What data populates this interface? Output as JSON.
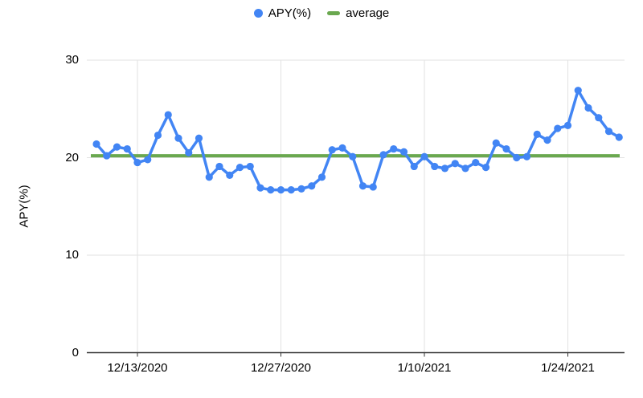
{
  "legend": {
    "apy_label": "APY(%)",
    "average_label": "average"
  },
  "y_axis_label": "APY(%)",
  "chart_data": {
    "type": "line",
    "title": "",
    "xlabel": "",
    "ylabel": "APY(%)",
    "ylim": [
      0,
      30
    ],
    "grid": true,
    "legend_position": "top-center",
    "colors": {
      "apy_series": "#4285f4",
      "average_line": "#6aa84f",
      "gridline": "#e2e2e2",
      "axis": "#333333",
      "background": "#ffffff"
    },
    "yticks": [
      "0",
      "10",
      "20",
      "30"
    ],
    "xticks": [
      "12/13/2020",
      "12/27/2020",
      "1/10/2021",
      "1/24/2021"
    ],
    "x": [
      "12/9/2020",
      "12/10/2020",
      "12/11/2020",
      "12/12/2020",
      "12/13/2020",
      "12/14/2020",
      "12/15/2020",
      "12/16/2020",
      "12/17/2020",
      "12/18/2020",
      "12/19/2020",
      "12/20/2020",
      "12/21/2020",
      "12/22/2020",
      "12/23/2020",
      "12/24/2020",
      "12/25/2020",
      "12/26/2020",
      "12/27/2020",
      "12/28/2020",
      "12/29/2020",
      "12/30/2020",
      "12/31/2020",
      "1/1/2021",
      "1/2/2021",
      "1/3/2021",
      "1/4/2021",
      "1/5/2021",
      "1/6/2021",
      "1/7/2021",
      "1/8/2021",
      "1/9/2021",
      "1/10/2021",
      "1/11/2021",
      "1/12/2021",
      "1/13/2021",
      "1/14/2021",
      "1/15/2021",
      "1/16/2021",
      "1/17/2021",
      "1/18/2021",
      "1/19/2021",
      "1/20/2021",
      "1/21/2021",
      "1/22/2021",
      "1/23/2021",
      "1/24/2021",
      "1/25/2021",
      "1/26/2021",
      "1/27/2021",
      "1/28/2021",
      "1/29/2021"
    ],
    "series": [
      {
        "name": "APY(%)",
        "type": "line-with-markers",
        "values": [
          21.4,
          20.2,
          21.1,
          20.9,
          19.5,
          19.8,
          22.3,
          24.4,
          22.0,
          20.5,
          22.0,
          18.0,
          19.1,
          18.2,
          19.0,
          19.1,
          16.9,
          16.7,
          16.7,
          16.7,
          16.8,
          17.1,
          18.0,
          20.8,
          21.0,
          20.1,
          17.1,
          17.0,
          20.3,
          20.9,
          20.6,
          19.1,
          20.1,
          19.1,
          18.9,
          19.4,
          18.9,
          19.5,
          19.0,
          21.5,
          20.9,
          20.0,
          20.1,
          22.4,
          21.8,
          23.0,
          23.3,
          26.9,
          25.1,
          24.1,
          22.7,
          22.1
        ]
      },
      {
        "name": "average",
        "type": "constant-line",
        "value": 20.2
      }
    ]
  }
}
